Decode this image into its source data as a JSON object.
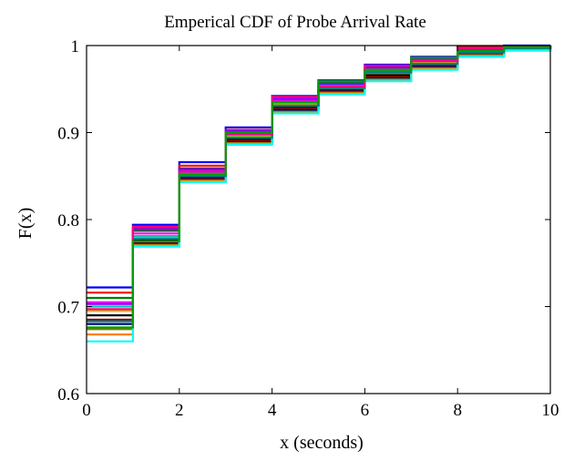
{
  "chart_data": {
    "type": "line",
    "title": "Emperical CDF of Probe Arrival Rate",
    "xlabel": "x (seconds)",
    "ylabel": "F(x)",
    "xlim": [
      0,
      10
    ],
    "ylim": [
      0.6,
      1.0
    ],
    "xticks": [
      0,
      2,
      4,
      6,
      8,
      10
    ],
    "yticks": [
      0.6,
      0.7,
      0.8,
      0.9,
      1.0
    ],
    "xtick_labels": [
      "0",
      "2",
      "4",
      "6",
      "8",
      "10"
    ],
    "ytick_labels": [
      "0.6",
      "0.7",
      "0.8",
      "0.9",
      "1"
    ],
    "step_style": "stairs",
    "grid": false,
    "legend": "none",
    "x": [
      0,
      1,
      2,
      3,
      4,
      5,
      6,
      7,
      8,
      9,
      10
    ],
    "series": [
      {
        "color": "#0000ff",
        "values": [
          0.722,
          0.794,
          0.866,
          0.906,
          0.942,
          0.96,
          0.978,
          0.987,
          0.999,
          1.0,
          1.0
        ]
      },
      {
        "color": "#ff0000",
        "values": [
          0.716,
          0.79,
          0.862,
          0.903,
          0.94,
          0.958,
          0.976,
          0.986,
          0.998,
          0.999,
          1.0
        ]
      },
      {
        "color": "#008000",
        "values": [
          0.71,
          0.787,
          0.859,
          0.901,
          0.938,
          0.957,
          0.974,
          0.984,
          0.997,
          0.999,
          1.0
        ]
      },
      {
        "color": "#ff00ff",
        "values": [
          0.705,
          0.784,
          0.856,
          0.899,
          0.936,
          0.955,
          0.972,
          0.983,
          0.996,
          0.998,
          1.0
        ]
      },
      {
        "color": "#00c0c0",
        "values": [
          0.7,
          0.781,
          0.853,
          0.897,
          0.934,
          0.954,
          0.97,
          0.981,
          0.995,
          0.998,
          1.0
        ]
      },
      {
        "color": "#c0c000",
        "values": [
          0.695,
          0.779,
          0.851,
          0.895,
          0.932,
          0.952,
          0.968,
          0.98,
          0.994,
          0.997,
          1.0
        ]
      },
      {
        "color": "#000000",
        "values": [
          0.69,
          0.776,
          0.849,
          0.893,
          0.93,
          0.95,
          0.966,
          0.978,
          0.993,
          0.997,
          1.0
        ]
      },
      {
        "color": "#800000",
        "values": [
          0.685,
          0.774,
          0.847,
          0.891,
          0.928,
          0.948,
          0.964,
          0.977,
          0.991,
          0.996,
          1.0
        ]
      },
      {
        "color": "#000080",
        "values": [
          0.68,
          0.772,
          0.846,
          0.889,
          0.926,
          0.947,
          0.962,
          0.975,
          0.99,
          0.996,
          1.0
        ]
      },
      {
        "color": "#808000",
        "values": [
          0.674,
          0.771,
          0.845,
          0.888,
          0.924,
          0.946,
          0.961,
          0.974,
          0.989,
          0.995,
          1.0
        ]
      },
      {
        "color": "#ff8000",
        "values": [
          0.668,
          0.77,
          0.844,
          0.887,
          0.923,
          0.945,
          0.96,
          0.973,
          0.988,
          0.995,
          1.0
        ]
      },
      {
        "color": "#00ffff",
        "values": [
          0.66,
          0.769,
          0.843,
          0.886,
          0.922,
          0.944,
          0.959,
          0.972,
          0.987,
          0.994,
          1.0
        ]
      },
      {
        "color": "#8000ff",
        "values": [
          0.703,
          0.789,
          0.858,
          0.902,
          0.939,
          0.956,
          0.975,
          0.985,
          0.996,
          0.998,
          1.0
        ]
      },
      {
        "color": "#008080",
        "values": [
          0.683,
          0.778,
          0.85,
          0.894,
          0.931,
          0.951,
          0.969,
          0.979,
          0.992,
          0.997,
          1.0
        ]
      },
      {
        "color": "#ff0080",
        "values": [
          0.697,
          0.792,
          0.855,
          0.898,
          0.941,
          0.953,
          0.977,
          0.982,
          0.997,
          0.999,
          1.0
        ]
      },
      {
        "color": "#00a000",
        "values": [
          0.676,
          0.775,
          0.852,
          0.9,
          0.935,
          0.959,
          0.971,
          0.986,
          0.994,
          0.998,
          1.0
        ]
      }
    ]
  }
}
